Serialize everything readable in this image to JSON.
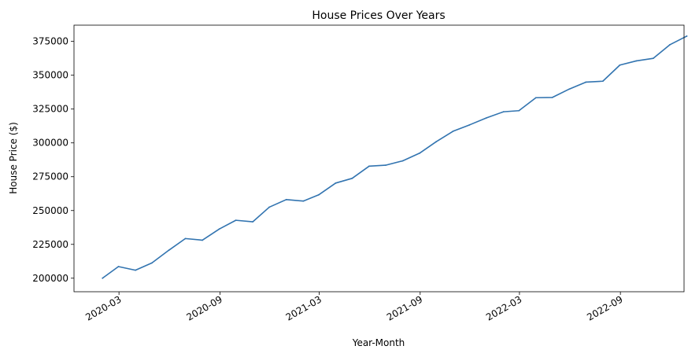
{
  "chart_data": {
    "type": "line",
    "title": "House Prices Over Years",
    "xlabel": "Year-Month",
    "ylabel": "House Price ($)",
    "x_tick_labels": [
      "2020-03",
      "2020-09",
      "2021-03",
      "2021-09",
      "2022-03",
      "2022-09"
    ],
    "y_tick_labels": [
      "200000",
      "225000",
      "250000",
      "275000",
      "300000",
      "325000",
      "350000",
      "375000"
    ],
    "x_ticks": [
      "2020-03-01",
      "2020-09-01",
      "2021-03-01",
      "2021-09-01",
      "2022-03-01",
      "2022-09-01"
    ],
    "y_ticks": [
      200000,
      225000,
      250000,
      275000,
      300000,
      325000,
      350000,
      375000
    ],
    "xlim": [
      "2019-12-10",
      "2022-12-26"
    ],
    "ylim": [
      190000,
      387000
    ],
    "grid": false,
    "line_color": "#3274b0",
    "series": [
      {
        "x": [
          "2020-01-31",
          "2020-02-29",
          "2020-03-31",
          "2020-04-30",
          "2020-05-31",
          "2020-06-30",
          "2020-07-31",
          "2020-08-31",
          "2020-09-30",
          "2020-10-31",
          "2020-11-30",
          "2020-12-31",
          "2021-01-31",
          "2021-02-28",
          "2021-03-31",
          "2021-04-30",
          "2021-05-31",
          "2021-06-30",
          "2021-07-31",
          "2021-08-31",
          "2021-09-30",
          "2021-10-31",
          "2021-11-30",
          "2021-12-31",
          "2022-01-31",
          "2022-02-28",
          "2022-03-31",
          "2022-04-30",
          "2022-05-31",
          "2022-06-30",
          "2022-07-31",
          "2022-08-31",
          "2022-09-30",
          "2022-10-31",
          "2022-11-30",
          "2022-12-31"
        ],
        "values": [
          200000,
          208600,
          205900,
          211300,
          220700,
          229300,
          228100,
          236400,
          242800,
          241700,
          252500,
          258100,
          257000,
          261600,
          270300,
          273800,
          282800,
          283500,
          286700,
          292400,
          300800,
          308600,
          313300,
          318500,
          323000,
          323800,
          333400,
          333600,
          339800,
          344900,
          345600,
          357500,
          360600,
          362500,
          372500,
          378900
        ]
      }
    ]
  }
}
